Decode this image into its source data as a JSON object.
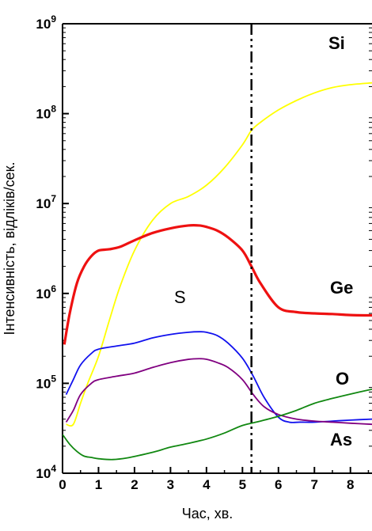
{
  "chart_data": {
    "type": "line",
    "xlabel": "Час, хв.",
    "ylabel": "Інтенсивність, відліків/сек.",
    "xlim": [
      0,
      8.6
    ],
    "ylim": [
      10000,
      1000000000
    ],
    "yscale": "log",
    "x_ticks": [
      "0",
      "1",
      "2",
      "3",
      "4",
      "5",
      "6",
      "7",
      "8"
    ],
    "y_ticks": [
      {
        "base": "10",
        "exp": "4"
      },
      {
        "base": "10",
        "exp": "5"
      },
      {
        "base": "10",
        "exp": "6"
      },
      {
        "base": "10",
        "exp": "7"
      },
      {
        "base": "10",
        "exp": "8"
      },
      {
        "base": "10",
        "exp": "9"
      }
    ],
    "vline_x": 5.25,
    "series": [
      {
        "name": "Si",
        "color": "#ffff00",
        "x": [
          0.1,
          0.3,
          0.5,
          0.7,
          1.0,
          1.3,
          1.6,
          2.0,
          2.5,
          3.0,
          3.5,
          4.0,
          4.5,
          5.0,
          5.25,
          5.5,
          6.0,
          6.5,
          7.0,
          7.5,
          8.0,
          8.6
        ],
        "y": [
          35000,
          35000,
          60000,
          100000,
          200000,
          500000,
          1200000,
          3000000,
          6500000,
          10000000,
          12000000,
          16000000,
          25000000,
          45000000,
          65000000,
          80000000,
          110000000,
          140000000,
          170000000,
          195000000,
          210000000,
          220000000
        ]
      },
      {
        "name": "Ge",
        "color": "#ee1111",
        "x": [
          0.05,
          0.2,
          0.4,
          0.6,
          0.8,
          1.0,
          1.3,
          1.6,
          2.0,
          2.5,
          3.0,
          3.5,
          3.8,
          4.0,
          4.3,
          4.6,
          5.0,
          5.25,
          5.5,
          6.0,
          6.5,
          7.0,
          7.5,
          8.0,
          8.6
        ],
        "y": [
          270000,
          600000,
          1300000,
          2000000,
          2600000,
          3000000,
          3100000,
          3300000,
          3900000,
          4700000,
          5300000,
          5700000,
          5700000,
          5500000,
          5000000,
          4200000,
          3000000,
          2000000,
          1300000,
          700000,
          620000,
          600000,
          590000,
          575000,
          570000
        ]
      },
      {
        "name": "O",
        "color": "#1111ee",
        "x": [
          0.1,
          0.3,
          0.5,
          0.8,
          1.0,
          1.5,
          2.0,
          2.5,
          3.0,
          3.5,
          3.8,
          4.0,
          4.3,
          4.6,
          5.0,
          5.3,
          5.6,
          6.0,
          6.3,
          6.6,
          7.0,
          7.5,
          8.0,
          8.6
        ],
        "y": [
          75000,
          110000,
          160000,
          215000,
          240000,
          260000,
          280000,
          320000,
          350000,
          370000,
          375000,
          370000,
          340000,
          280000,
          190000,
          120000,
          70000,
          42000,
          37000,
          37000,
          37000,
          38000,
          39000,
          40000
        ]
      },
      {
        "name": "",
        "color": "#800080",
        "x": [
          0.1,
          0.3,
          0.5,
          0.8,
          1.0,
          1.5,
          2.0,
          2.5,
          3.0,
          3.5,
          3.8,
          4.0,
          4.3,
          4.6,
          5.0,
          5.3,
          5.6,
          6.0,
          6.5,
          7.0,
          7.5,
          8.0,
          8.6
        ],
        "y": [
          37000,
          50000,
          75000,
          100000,
          110000,
          120000,
          130000,
          150000,
          170000,
          185000,
          188000,
          185000,
          170000,
          150000,
          110000,
          75000,
          55000,
          45000,
          40000,
          38000,
          37000,
          36000,
          35000
        ]
      },
      {
        "name": "As",
        "color": "#118811",
        "x": [
          0.0,
          0.2,
          0.4,
          0.6,
          0.8,
          1.0,
          1.4,
          1.8,
          2.2,
          2.6,
          3.0,
          3.5,
          4.0,
          4.5,
          5.0,
          5.5,
          6.0,
          6.5,
          7.0,
          7.5,
          8.0,
          8.6
        ],
        "y": [
          27000,
          21000,
          17500,
          15500,
          15000,
          14500,
          14200,
          14800,
          16000,
          17500,
          19500,
          21500,
          24000,
          28000,
          34000,
          38000,
          43000,
          50000,
          60000,
          68000,
          76000,
          86000
        ]
      }
    ],
    "labels": {
      "Si": "Si",
      "Ge": "Ge",
      "O": "O",
      "As": "As",
      "S": "S"
    }
  }
}
